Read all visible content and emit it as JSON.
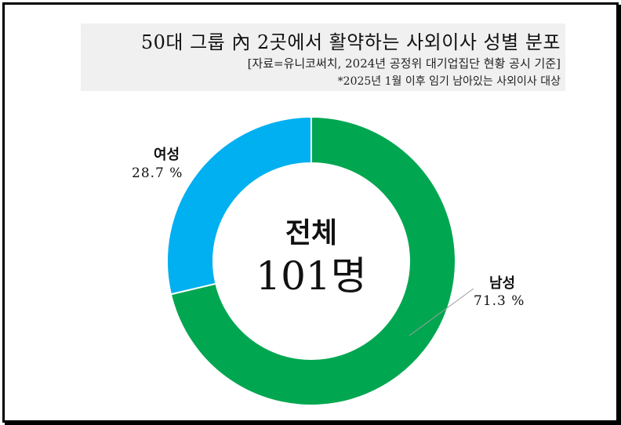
{
  "header": {
    "title": "50대 그룹 內 2곳에서 활약하는 사외이사 성별 분포",
    "source": "[자료=유니코써치, 2024년 공정위 대기업집단 현황 공시 기준]",
    "note": "*2025년 1월 이후 임기 남아있는 사외이사 대상"
  },
  "center": {
    "label": "전체",
    "total": "101명"
  },
  "colors": {
    "male": "#00a650",
    "female": "#00b0f0"
  },
  "chart_data": {
    "type": "pie",
    "style": "donut",
    "total_count": 101,
    "slices": [
      {
        "name": "여성",
        "value": 28.7,
        "label": "28.7 %"
      },
      {
        "name": "남성",
        "value": 71.3,
        "label": "71.3 %"
      }
    ]
  }
}
